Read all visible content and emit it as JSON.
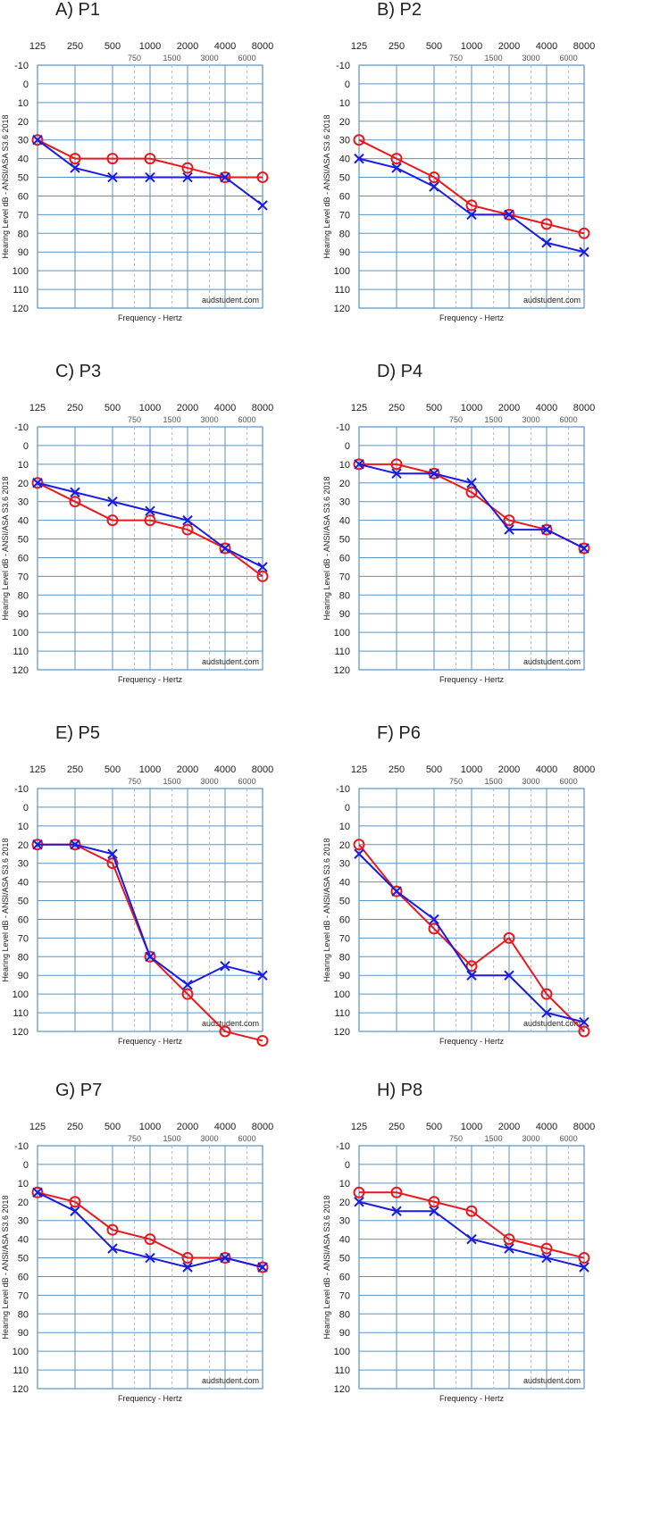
{
  "figure": {
    "colors": {
      "right_ear": "#e8191c",
      "left_ear": "#1c1ce0",
      "grid": "#5b93c5",
      "grid_minor": "#b8b8b8"
    }
  },
  "chart_data": [
    {
      "type": "line",
      "title": "A) P1",
      "xlabel": "Frequency - Hertz",
      "ylabel": "Hearing Level dB - ANSI/ASA S3.6 2018",
      "watermark": "audstudent.com",
      "x_ticks_major": [
        "125",
        "250",
        "500",
        "1000",
        "2000",
        "4000",
        "8000"
      ],
      "x_ticks_minor": [
        "750",
        "1500",
        "3000",
        "6000"
      ],
      "y_ticks": [
        "-10",
        "0",
        "10",
        "20",
        "30",
        "40",
        "50",
        "60",
        "70",
        "80",
        "90",
        "100",
        "110",
        "120"
      ],
      "ylim": [
        -10,
        120
      ],
      "grid": true,
      "x": [
        125,
        250,
        500,
        1000,
        2000,
        4000,
        8000
      ],
      "series": [
        {
          "marker": "circle",
          "color": "#e8191c",
          "values": [
            30,
            40,
            40,
            40,
            45,
            50,
            50
          ]
        },
        {
          "marker": "x",
          "color": "#1c1ce0",
          "values": [
            30,
            45,
            50,
            50,
            50,
            50,
            65
          ]
        }
      ]
    },
    {
      "type": "line",
      "title": "B) P2",
      "xlabel": "Frequency - Hertz",
      "ylabel": "Hearing Level dB - ANSI/ASA S3.6 2018",
      "watermark": "audstudent.com",
      "x_ticks_major": [
        "125",
        "250",
        "500",
        "1000",
        "2000",
        "4000",
        "8000"
      ],
      "x_ticks_minor": [
        "750",
        "1500",
        "3000",
        "6000"
      ],
      "y_ticks": [
        "-10",
        "0",
        "10",
        "20",
        "30",
        "40",
        "50",
        "60",
        "70",
        "80",
        "90",
        "100",
        "110",
        "120"
      ],
      "ylim": [
        -10,
        120
      ],
      "grid": true,
      "x": [
        125,
        250,
        500,
        1000,
        2000,
        4000,
        8000
      ],
      "series": [
        {
          "marker": "circle",
          "color": "#e8191c",
          "values": [
            30,
            40,
            50,
            65,
            70,
            75,
            80
          ]
        },
        {
          "marker": "x",
          "color": "#1c1ce0",
          "values": [
            40,
            45,
            55,
            70,
            70,
            85,
            90
          ]
        }
      ]
    },
    {
      "type": "line",
      "title": "C) P3",
      "xlabel": "Frequency - Hertz",
      "ylabel": "Hearing Level dB - ANSI/ASA S3.6 2018",
      "watermark": "audstudent.com",
      "x_ticks_major": [
        "125",
        "250",
        "500",
        "1000",
        "2000",
        "4000",
        "8000"
      ],
      "x_ticks_minor": [
        "750",
        "1500",
        "3000",
        "6000"
      ],
      "y_ticks": [
        "-10",
        "0",
        "10",
        "20",
        "30",
        "40",
        "50",
        "60",
        "70",
        "80",
        "90",
        "100",
        "110",
        "120"
      ],
      "ylim": [
        -10,
        120
      ],
      "grid": true,
      "x": [
        125,
        250,
        500,
        1000,
        2000,
        4000,
        8000
      ],
      "series": [
        {
          "marker": "circle",
          "color": "#e8191c",
          "values": [
            20,
            30,
            40,
            40,
            45,
            55,
            70
          ]
        },
        {
          "marker": "x",
          "color": "#1c1ce0",
          "values": [
            20,
            25,
            30,
            35,
            40,
            55,
            65
          ]
        }
      ]
    },
    {
      "type": "line",
      "title": "D) P4",
      "xlabel": "Frequency - Hertz",
      "ylabel": "Hearing Level dB - ANSI/ASA S3.6 2018",
      "watermark": "audstudent.com",
      "x_ticks_major": [
        "125",
        "250",
        "500",
        "1000",
        "2000",
        "4000",
        "8000"
      ],
      "x_ticks_minor": [
        "750",
        "1500",
        "3000",
        "6000"
      ],
      "y_ticks": [
        "-10",
        "0",
        "10",
        "20",
        "30",
        "40",
        "50",
        "60",
        "70",
        "80",
        "90",
        "100",
        "110",
        "120"
      ],
      "ylim": [
        -10,
        120
      ],
      "grid": true,
      "x": [
        125,
        250,
        500,
        1000,
        2000,
        4000,
        8000
      ],
      "series": [
        {
          "marker": "circle",
          "color": "#e8191c",
          "values": [
            10,
            10,
            15,
            25,
            40,
            45,
            55
          ]
        },
        {
          "marker": "x",
          "color": "#1c1ce0",
          "values": [
            10,
            15,
            15,
            20,
            45,
            45,
            55
          ]
        }
      ]
    },
    {
      "type": "line",
      "title": "E) P5",
      "xlabel": "Frequency - Hertz",
      "ylabel": "Hearing Level dB - ANSI/ASA S3.6 2018",
      "watermark": "audstudent.com",
      "x_ticks_major": [
        "125",
        "250",
        "500",
        "1000",
        "2000",
        "4000",
        "8000"
      ],
      "x_ticks_minor": [
        "750",
        "1500",
        "3000",
        "6000"
      ],
      "y_ticks": [
        "-10",
        "0",
        "10",
        "20",
        "30",
        "40",
        "50",
        "60",
        "70",
        "80",
        "90",
        "100",
        "110",
        "120"
      ],
      "ylim": [
        -10,
        120
      ],
      "grid": true,
      "x": [
        125,
        250,
        500,
        1000,
        2000,
        4000,
        8000
      ],
      "series": [
        {
          "marker": "circle",
          "color": "#e8191c",
          "values": [
            20,
            20,
            30,
            80,
            100,
            120,
            125
          ]
        },
        {
          "marker": "x",
          "color": "#1c1ce0",
          "values": [
            20,
            20,
            25,
            80,
            95,
            85,
            90
          ]
        }
      ]
    },
    {
      "type": "line",
      "title": "F) P6",
      "xlabel": "Frequency - Hertz",
      "ylabel": "Hearing Level dB - ANSI/ASA S3.6 2018",
      "watermark": "audstudent.com",
      "x_ticks_major": [
        "125",
        "250",
        "500",
        "1000",
        "2000",
        "4000",
        "8000"
      ],
      "x_ticks_minor": [
        "750",
        "1500",
        "3000",
        "6000"
      ],
      "y_ticks": [
        "-10",
        "0",
        "10",
        "20",
        "30",
        "40",
        "50",
        "60",
        "70",
        "80",
        "90",
        "100",
        "110",
        "120"
      ],
      "ylim": [
        -10,
        120
      ],
      "grid": true,
      "x": [
        125,
        250,
        500,
        1000,
        2000,
        4000,
        8000
      ],
      "series": [
        {
          "marker": "circle",
          "color": "#e8191c",
          "values": [
            20,
            45,
            65,
            85,
            70,
            100,
            120
          ]
        },
        {
          "marker": "x",
          "color": "#1c1ce0",
          "values": [
            25,
            45,
            60,
            90,
            90,
            110,
            115
          ]
        }
      ]
    },
    {
      "type": "line",
      "title": "G) P7",
      "xlabel": "Frequency - Hertz",
      "ylabel": "Hearing Level dB - ANSI/ASA S3.6 2018",
      "watermark": "audstudent.com",
      "x_ticks_major": [
        "125",
        "250",
        "500",
        "1000",
        "2000",
        "4000",
        "8000"
      ],
      "x_ticks_minor": [
        "750",
        "1500",
        "3000",
        "6000"
      ],
      "y_ticks": [
        "-10",
        "0",
        "10",
        "20",
        "30",
        "40",
        "50",
        "60",
        "70",
        "80",
        "90",
        "100",
        "110",
        "120"
      ],
      "ylim": [
        -10,
        120
      ],
      "grid": true,
      "x": [
        125,
        250,
        500,
        1000,
        2000,
        4000,
        8000
      ],
      "series": [
        {
          "marker": "circle",
          "color": "#e8191c",
          "values": [
            15,
            20,
            35,
            40,
            50,
            50,
            55
          ]
        },
        {
          "marker": "x",
          "color": "#1c1ce0",
          "values": [
            15,
            25,
            45,
            50,
            55,
            50,
            55
          ]
        }
      ]
    },
    {
      "type": "line",
      "title": "H) P8",
      "xlabel": "Frequency - Hertz",
      "ylabel": "Hearing Level dB - ANSI/ASA S3.6 2018",
      "watermark": "audstudent.com",
      "x_ticks_major": [
        "125",
        "250",
        "500",
        "1000",
        "2000",
        "4000",
        "8000"
      ],
      "x_ticks_minor": [
        "750",
        "1500",
        "3000",
        "6000"
      ],
      "y_ticks": [
        "-10",
        "0",
        "10",
        "20",
        "30",
        "40",
        "50",
        "60",
        "70",
        "80",
        "90",
        "100",
        "110",
        "120"
      ],
      "ylim": [
        -10,
        120
      ],
      "grid": true,
      "x": [
        125,
        250,
        500,
        1000,
        2000,
        4000,
        8000
      ],
      "series": [
        {
          "marker": "circle",
          "color": "#e8191c",
          "values": [
            15,
            15,
            20,
            25,
            40,
            45,
            50
          ]
        },
        {
          "marker": "x",
          "color": "#1c1ce0",
          "values": [
            20,
            25,
            25,
            40,
            45,
            50,
            55
          ]
        }
      ]
    }
  ]
}
